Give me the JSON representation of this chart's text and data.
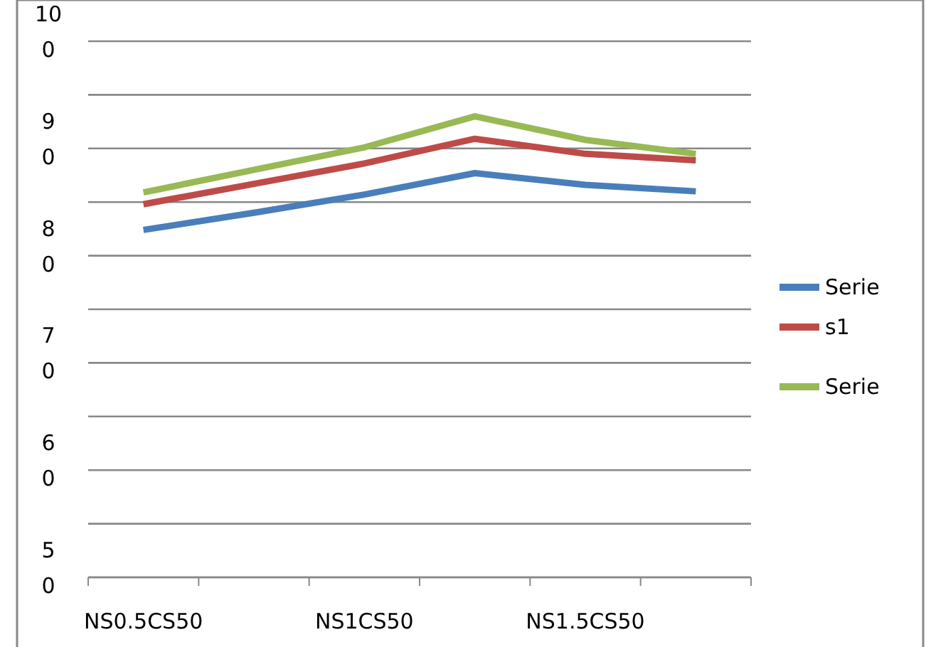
{
  "chart_data": {
    "type": "line",
    "categories": [
      "NS0.5CS50",
      null,
      "NS1CS50",
      null,
      "NS1.5CS50",
      null
    ],
    "series": [
      {
        "name": "Serie",
        "color": "#4a7ebb",
        "values": [
          82.4,
          84.0,
          85.7,
          87.7,
          86.6,
          86.0
        ]
      },
      {
        "name": "s1",
        "color": "#be4b48",
        "values": [
          84.8,
          86.7,
          88.6,
          90.9,
          89.5,
          88.9
        ]
      },
      {
        "name": "Serie",
        "color": "#98b954",
        "values": [
          85.9,
          88.0,
          90.1,
          93.0,
          90.8,
          89.5
        ]
      }
    ],
    "ylim": [
      50,
      100
    ],
    "yticks": [
      50,
      {
        "value": 55,
        "label": null
      },
      60,
      {
        "value": 65,
        "label": null
      },
      70,
      {
        "value": 75,
        "label": null
      },
      80,
      {
        "value": 85,
        "label": null
      },
      90,
      {
        "value": 95,
        "label": null
      },
      100
    ],
    "grid": true,
    "legend": "right",
    "marker": "none",
    "line_style": "solid"
  }
}
